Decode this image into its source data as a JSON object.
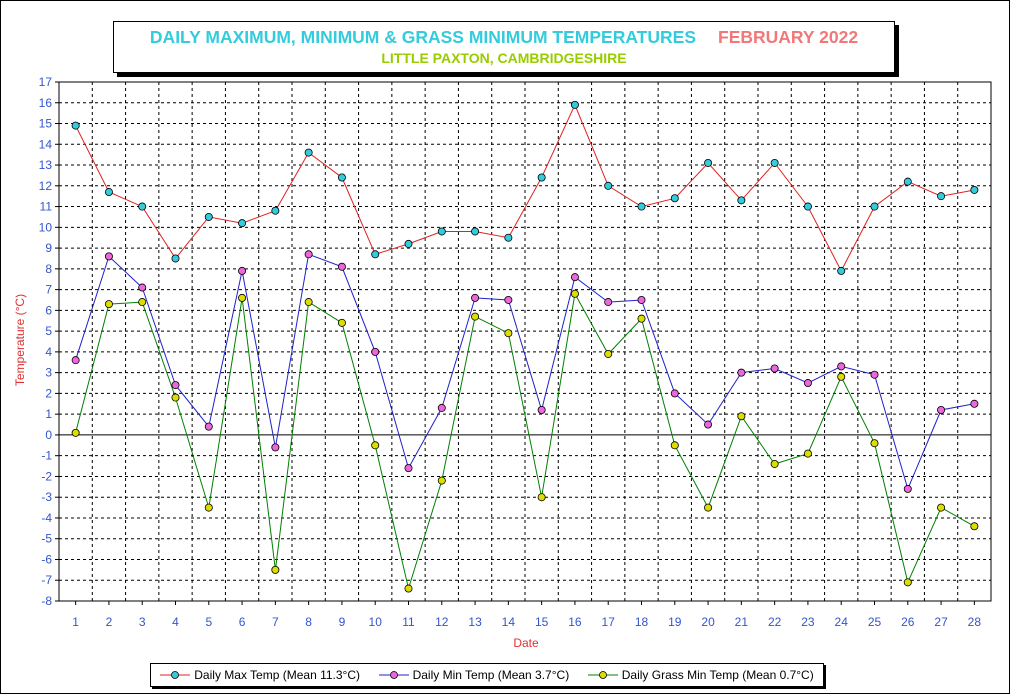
{
  "title": "DAILY MAXIMUM, MINIMUM & GRASS MINIMUM TEMPERATURES",
  "month": "FEBRUARY 2022",
  "subtitle": "LITTLE PAXTON, CAMBRIDGESHIRE",
  "colors": {
    "max_line": "#e02020",
    "max_marker": "#33ccdd",
    "min_line": "#2020cc",
    "min_marker": "#ee66dd",
    "grass_line": "#008000",
    "grass_marker": "#dddd00",
    "tick_text": "#3355cc",
    "axis_label": "#e03030"
  },
  "chart_data": {
    "type": "line",
    "xlabel": "Date",
    "ylabel": "Temperature (°C)",
    "x": [
      1,
      2,
      3,
      4,
      5,
      6,
      7,
      8,
      9,
      10,
      11,
      12,
      13,
      14,
      15,
      16,
      17,
      18,
      19,
      20,
      21,
      22,
      23,
      24,
      25,
      26,
      27,
      28
    ],
    "ylim": [
      -8,
      17
    ],
    "yticks": [
      17,
      16,
      15,
      14,
      13,
      12,
      11,
      10,
      9,
      8,
      7,
      6,
      5,
      4,
      3,
      2,
      1,
      0,
      -1,
      -2,
      -3,
      -4,
      -5,
      -6,
      -7,
      -8
    ],
    "grid": true,
    "legend_position": "bottom",
    "series": [
      {
        "name": "Daily Max Temp (Mean 11.3°C)",
        "values": [
          14.9,
          11.7,
          11.0,
          8.5,
          10.5,
          10.2,
          10.8,
          13.6,
          12.4,
          8.7,
          9.2,
          9.8,
          9.8,
          9.5,
          12.4,
          15.9,
          12.0,
          11.0,
          11.4,
          13.1,
          11.3,
          13.1,
          11.0,
          7.9,
          11.0,
          12.2,
          11.5,
          11.8
        ]
      },
      {
        "name": "Daily Min Temp (Mean 3.7°C)",
        "values": [
          3.6,
          8.6,
          7.1,
          2.4,
          0.4,
          7.9,
          -0.6,
          8.7,
          8.1,
          4.0,
          -1.6,
          1.3,
          6.6,
          6.5,
          1.2,
          7.6,
          6.4,
          6.5,
          2.0,
          0.5,
          3.0,
          3.2,
          2.5,
          3.3,
          2.9,
          -2.6,
          1.2,
          1.5
        ]
      },
      {
        "name": "Daily Grass Min Temp (Mean 0.7°C)",
        "values": [
          0.1,
          6.3,
          6.4,
          1.8,
          -3.5,
          6.6,
          -6.5,
          6.4,
          5.4,
          -0.5,
          -7.4,
          -2.2,
          5.7,
          4.9,
          -3.0,
          6.8,
          3.9,
          5.6,
          -0.5,
          -3.5,
          0.9,
          -1.4,
          -0.9,
          2.8,
          -0.4,
          -7.1,
          -3.5,
          -4.4
        ]
      }
    ]
  }
}
